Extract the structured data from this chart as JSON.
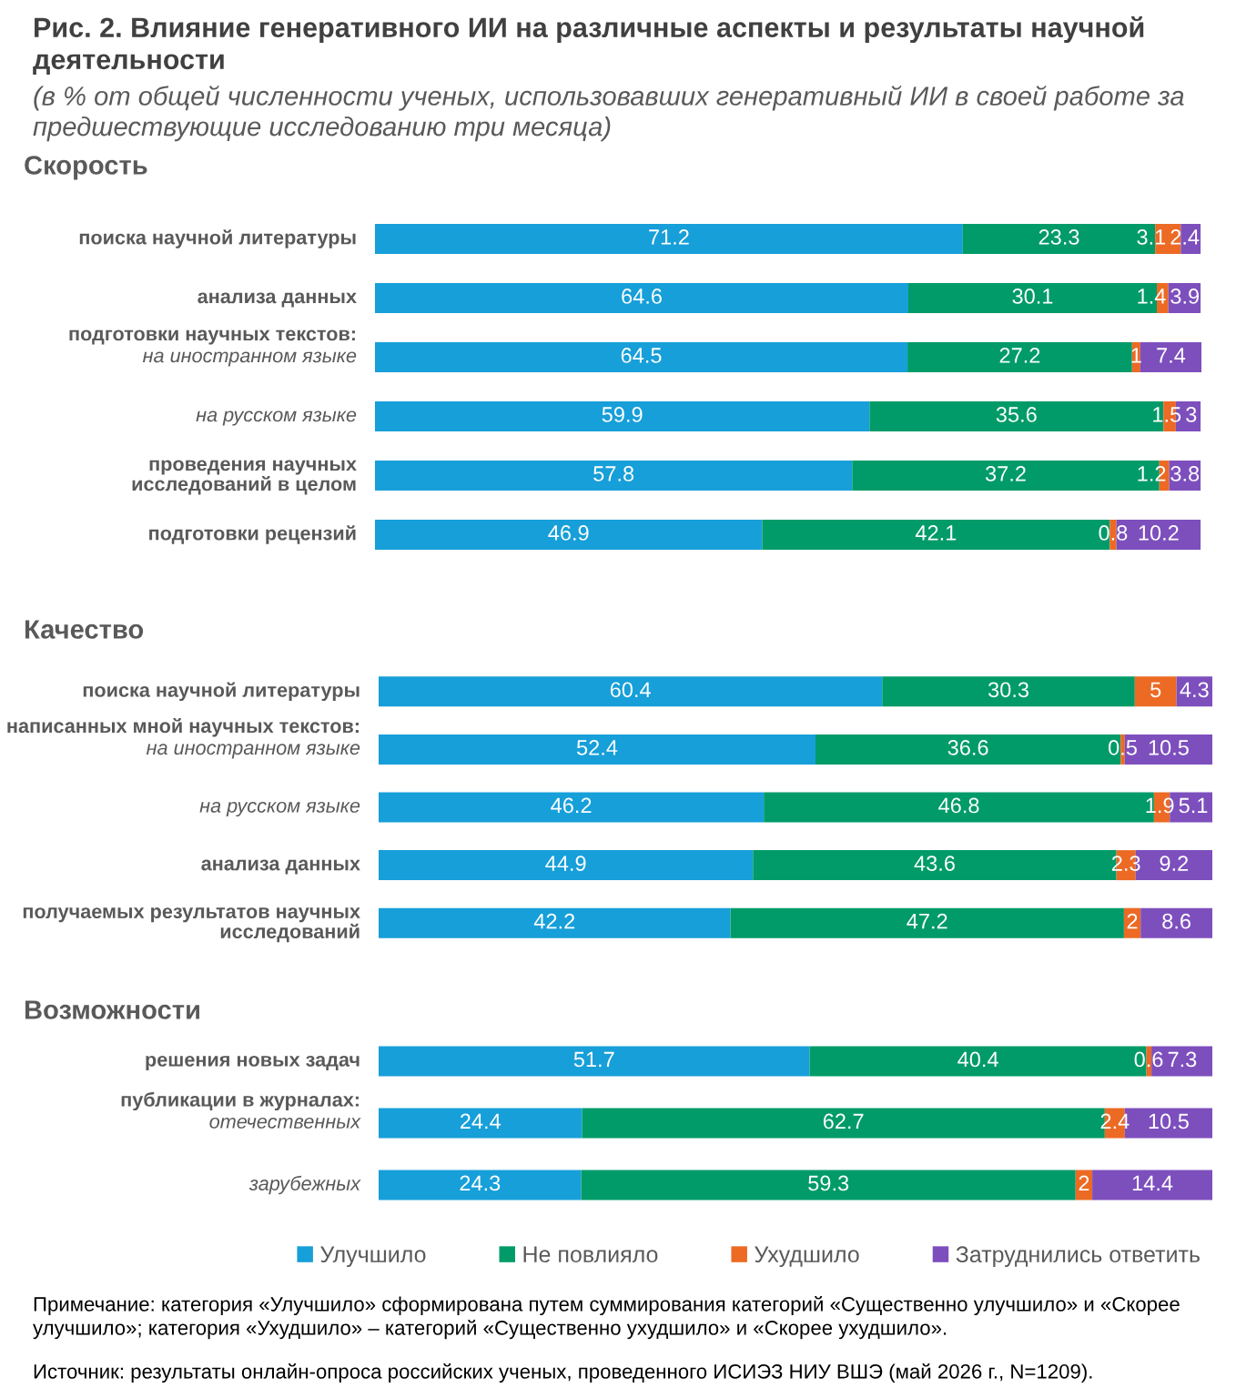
{
  "chart_data": [
    {
      "type": "bar",
      "orientation": "horizontal",
      "stacked": true,
      "data_labels": true,
      "tick_labels": "y",
      "title": "Скорость",
      "annotations": [
        "Рис. 2. Влияние генеративного ИИ на различные аспекты и результаты научной деятельности",
        "(в % от общей численности ученых, использовавших генеративный ИИ в своей работе за предшествующие исследованию три месяца)"
      ],
      "categories": [
        "поиска научной литературы",
        "анализа данных",
        "подготовки научных текстов:\nна иностранном языке",
        "на русском языке",
        "проведения научных\nисследований в целом",
        "подготовки рецензий"
      ],
      "series": [
        {
          "color": "#179fd9",
          "values": [
            71.2,
            64.6,
            64.5,
            59.9,
            57.8,
            46.9
          ]
        },
        {
          "color": "#009b68",
          "values": [
            23.3,
            30.1,
            27.2,
            35.6,
            37.2,
            42.1
          ]
        },
        {
          "color": "#ec6a24",
          "values": [
            3.1,
            1.4,
            1,
            1.5,
            1.2,
            0.8
          ]
        },
        {
          "color": "#7d4fbd",
          "values": [
            2.4,
            3.9,
            7.4,
            3,
            3.8,
            10.2
          ]
        }
      ]
    },
    {
      "type": "bar",
      "orientation": "horizontal",
      "stacked": true,
      "data_labels": true,
      "tick_labels": "y",
      "title": "Качество",
      "categories": [
        "поиска научной литературы",
        "написанных мной научных текстов:\nна иностранном языке",
        "на русском языке",
        "анализа данных",
        "получаемых результатов научных\nисследований"
      ],
      "series": [
        {
          "color": "#179fd9",
          "values": [
            60.4,
            52.4,
            46.2,
            44.9,
            42.2
          ]
        },
        {
          "color": "#009b68",
          "values": [
            30.3,
            36.6,
            46.8,
            43.6,
            47.2
          ]
        },
        {
          "color": "#ec6a24",
          "values": [
            5,
            0.5,
            1.9,
            2.3,
            2
          ]
        },
        {
          "color": "#7d4fbd",
          "values": [
            4.3,
            10.5,
            5.1,
            9.2,
            8.6
          ]
        }
      ]
    },
    {
      "type": "bar",
      "orientation": "horizontal",
      "stacked": true,
      "data_labels": true,
      "tick_labels": "y",
      "title": "Возможности",
      "legend": "bottom",
      "annotations": [
        "Примечание: категория «Улучшило» сформирована путем суммирования категорий «Существенно улучшило» и «Скорее улучшило»; категория «Ухудшило» – категорий «Существенно ухудшило» и «Скорее ухудшило».",
        "Источник: результаты онлайн-опроса российских ученых, проведенного ИСИЭЗ НИУ ВШЭ (май 2026 г., N=1209)."
      ],
      "categories": [
        "решения новых задач",
        "публикации в журналах:\nотечественных",
        "зарубежных"
      ],
      "series": [
        {
          "name": "Улучшило",
          "color": "#179fd9",
          "values": [
            51.7,
            24.4,
            24.3
          ]
        },
        {
          "name": "Не повлияло",
          "color": "#009b68",
          "values": [
            40.4,
            62.7,
            59.3
          ]
        },
        {
          "name": "Ухудшило",
          "color": "#ec6a24",
          "values": [
            0.6,
            2.4,
            2
          ]
        },
        {
          "name": "Затруднились ответить",
          "color": "#7d4fbd",
          "values": [
            7.3,
            10.5,
            14.4
          ]
        }
      ]
    }
  ]
}
